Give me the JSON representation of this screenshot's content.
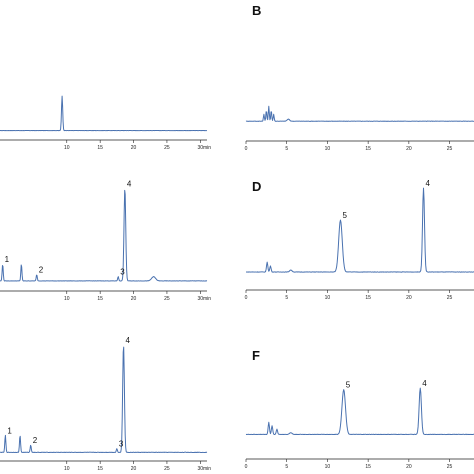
{
  "chart_data": [
    {
      "id": "A",
      "type": "line",
      "panel_label": "",
      "x_unit_label": "min",
      "xlim": [
        0,
        31
      ],
      "ylim": [
        0,
        100
      ],
      "x_ticks": [
        10,
        15,
        20,
        25,
        30
      ],
      "baseline": 2,
      "noise": 0.3,
      "peaks": [
        {
          "x": 9.3,
          "height": 48,
          "width": 0.09,
          "label": ""
        }
      ]
    },
    {
      "id": "B",
      "type": "line",
      "panel_label": "B",
      "x_unit_label": "",
      "xlim": [
        0,
        28
      ],
      "ylim": [
        0,
        100
      ],
      "x_ticks": [
        0,
        5,
        10,
        15,
        20,
        25
      ],
      "baseline": 10,
      "noise": 0.5,
      "peaks": [
        {
          "x": 2.2,
          "height": 10,
          "width": 0.06,
          "label": ""
        },
        {
          "x": 2.5,
          "height": 16,
          "width": 0.06,
          "label": ""
        },
        {
          "x": 2.8,
          "height": 22,
          "width": 0.06,
          "label": ""
        },
        {
          "x": 3.1,
          "height": 16,
          "width": 0.06,
          "label": ""
        },
        {
          "x": 3.4,
          "height": 10,
          "width": 0.06,
          "label": ""
        },
        {
          "x": 5.2,
          "height": 3,
          "width": 0.15,
          "label": ""
        }
      ]
    },
    {
      "id": "C",
      "type": "line",
      "panel_label": "",
      "x_unit_label": "min",
      "xlim": [
        0,
        31
      ],
      "ylim": [
        0,
        100
      ],
      "x_ticks": [
        10,
        15,
        20,
        25,
        30
      ],
      "baseline": 2,
      "noise": 0.3,
      "peaks": [
        {
          "x": 0.4,
          "height": 16,
          "width": 0.08,
          "label": "1"
        },
        {
          "x": 3.2,
          "height": 16,
          "width": 0.08,
          "label": ""
        },
        {
          "x": 5.5,
          "height": 6,
          "width": 0.08,
          "label": "2"
        },
        {
          "x": 17.7,
          "height": 4,
          "width": 0.08,
          "label": "3"
        },
        {
          "x": 18.7,
          "height": 88,
          "width": 0.13,
          "label": "4"
        },
        {
          "x": 23.0,
          "height": 4,
          "width": 0.3,
          "label": ""
        }
      ]
    },
    {
      "id": "D",
      "type": "line",
      "panel_label": "D",
      "x_unit_label": "",
      "xlim": [
        0,
        28
      ],
      "ylim": [
        0,
        100
      ],
      "x_ticks": [
        0,
        5,
        10,
        15,
        20,
        25
      ],
      "baseline": 8,
      "noise": 0.4,
      "peaks": [
        {
          "x": 2.6,
          "height": 10,
          "width": 0.08,
          "label": ""
        },
        {
          "x": 3.0,
          "height": 6,
          "width": 0.08,
          "label": ""
        },
        {
          "x": 5.5,
          "height": 2,
          "width": 0.15,
          "label": ""
        },
        {
          "x": 11.6,
          "height": 52,
          "width": 0.22,
          "label": "5"
        },
        {
          "x": 21.8,
          "height": 84,
          "width": 0.12,
          "label": "4"
        }
      ]
    },
    {
      "id": "E",
      "type": "line",
      "panel_label": "",
      "x_unit_label": "min",
      "xlim": [
        0,
        31
      ],
      "ylim": [
        0,
        100
      ],
      "x_ticks": [
        10,
        15,
        20,
        25,
        30
      ],
      "baseline": 3,
      "noise": 0.3,
      "peaks": [
        {
          "x": 0.8,
          "height": 14,
          "width": 0.08,
          "label": "1"
        },
        {
          "x": 3.0,
          "height": 14,
          "width": 0.08,
          "label": ""
        },
        {
          "x": 4.6,
          "height": 6,
          "width": 0.08,
          "label": "2"
        },
        {
          "x": 17.5,
          "height": 3,
          "width": 0.08,
          "label": "3"
        },
        {
          "x": 18.5,
          "height": 88,
          "width": 0.13,
          "label": "4"
        }
      ]
    },
    {
      "id": "F",
      "type": "line",
      "panel_label": "F",
      "x_unit_label": "",
      "xlim": [
        0,
        28
      ],
      "ylim": [
        0,
        100
      ],
      "x_ticks": [
        0,
        5,
        10,
        15,
        20,
        25
      ],
      "baseline": 10,
      "noise": 0.4,
      "peaks": [
        {
          "x": 2.8,
          "height": 14,
          "width": 0.08,
          "label": ""
        },
        {
          "x": 3.2,
          "height": 10,
          "width": 0.08,
          "label": ""
        },
        {
          "x": 3.8,
          "height": 6,
          "width": 0.08,
          "label": ""
        },
        {
          "x": 5.5,
          "height": 2,
          "width": 0.15,
          "label": ""
        },
        {
          "x": 12.0,
          "height": 52,
          "width": 0.22,
          "label": "5"
        },
        {
          "x": 21.4,
          "height": 54,
          "width": 0.14,
          "label": "4"
        }
      ]
    }
  ]
}
